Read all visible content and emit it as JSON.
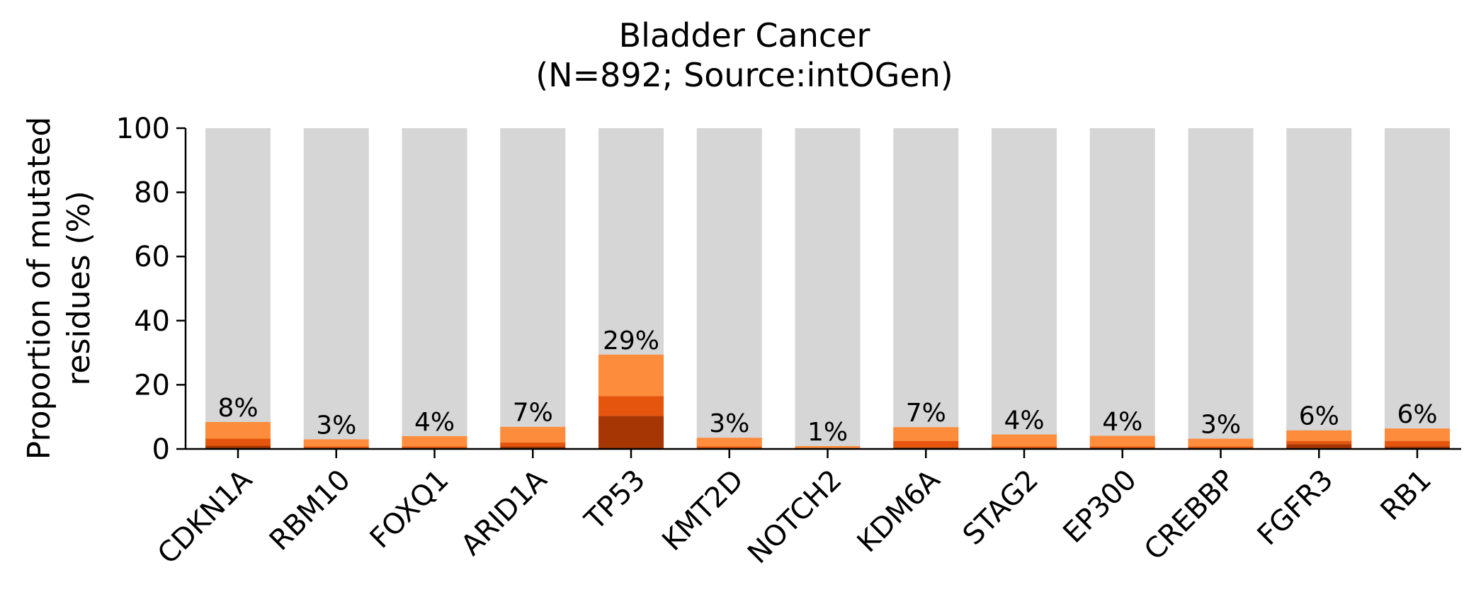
{
  "chart_data": {
    "type": "bar",
    "stacked": true,
    "title": [
      "Bladder Cancer",
      "(N=892; Source:intOGen)"
    ],
    "xlabel": "",
    "ylabel": [
      "Proportion of mutated",
      "residues (%)"
    ],
    "ylim": [
      0,
      100
    ],
    "yticks": [
      0,
      20,
      40,
      60,
      80,
      100
    ],
    "grid": false,
    "categories": [
      "CDKN1A",
      "RBM10",
      "FOXQ1",
      "ARID1A",
      "TP53",
      "KMT2D",
      "NOTCH2",
      "KDM6A",
      "STAG2",
      "EP300",
      "CREBBP",
      "FGFR3",
      "RB1"
    ],
    "background_value": 100,
    "background_color": "#d6d6d6",
    "series": [
      {
        "color": "#a63603",
        "values": [
          1.0,
          0.3,
          0.3,
          0.8,
          10.3,
          0.3,
          0.1,
          0.5,
          0.3,
          0.3,
          0.3,
          1.5,
          0.8
        ]
      },
      {
        "color": "#e6550d",
        "values": [
          2.2,
          0.5,
          0.5,
          1.2,
          6.2,
          0.5,
          0.2,
          2.0,
          0.5,
          0.5,
          0.5,
          1.0,
          1.7
        ]
      },
      {
        "color": "#fd8d3c",
        "values": [
          5.2,
          2.2,
          3.2,
          4.9,
          12.9,
          2.7,
          0.6,
          4.3,
          3.7,
          3.3,
          2.4,
          3.3,
          3.9
        ]
      }
    ],
    "totals": [
      8.4,
      3.0,
      4.0,
      6.9,
      29.4,
      3.5,
      0.9,
      6.8,
      4.5,
      4.1,
      3.2,
      5.8,
      6.4
    ],
    "data_labels": [
      "8%",
      "3%",
      "4%",
      "7%",
      "29%",
      "3%",
      "1%",
      "7%",
      "4%",
      "4%",
      "3%",
      "6%",
      "6%"
    ]
  }
}
